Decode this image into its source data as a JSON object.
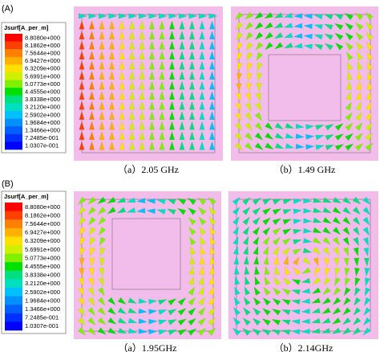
{
  "panels": [
    {
      "label": "(A)",
      "legend": {
        "title": "Jsurf[A_per_m]",
        "labels": [
          "8.8080e+000",
          "8.1862e+000",
          "7.5644e+000",
          "6.9427e+000",
          "6.3209e+000",
          "5.6991e+000",
          "5.0773e+000",
          "4.4555e+000",
          "3.8338e+000",
          "3.2120e+000",
          "2.5902e+000",
          "1.9684e+000",
          "1.3466e+000",
          "7.2485e-001",
          "1.0307e-001"
        ]
      },
      "plots": [
        {
          "caption": "（a）2.05 GHz"
        },
        {
          "caption": "（b）1.49 GHz"
        }
      ]
    },
    {
      "label": "(B)",
      "legend": {
        "title": "Jsurf[A_per_m]",
        "labels": [
          "8.8080e+000",
          "8.1862e+000",
          "7.5644e+000",
          "6.9427e+000",
          "6.3209e+000",
          "5.6991e+000",
          "5.0773e+000",
          "4.4555e+000",
          "3.8338e+000",
          "3.2120e+000",
          "2.5902e+000",
          "1.9684e+000",
          "1.3466e+000",
          "7.2485e-001",
          "1.0307e-001"
        ]
      },
      "plots": [
        {
          "caption": "（a）1.95GHz"
        },
        {
          "caption": "（b）2.14GHz"
        }
      ]
    }
  ]
}
